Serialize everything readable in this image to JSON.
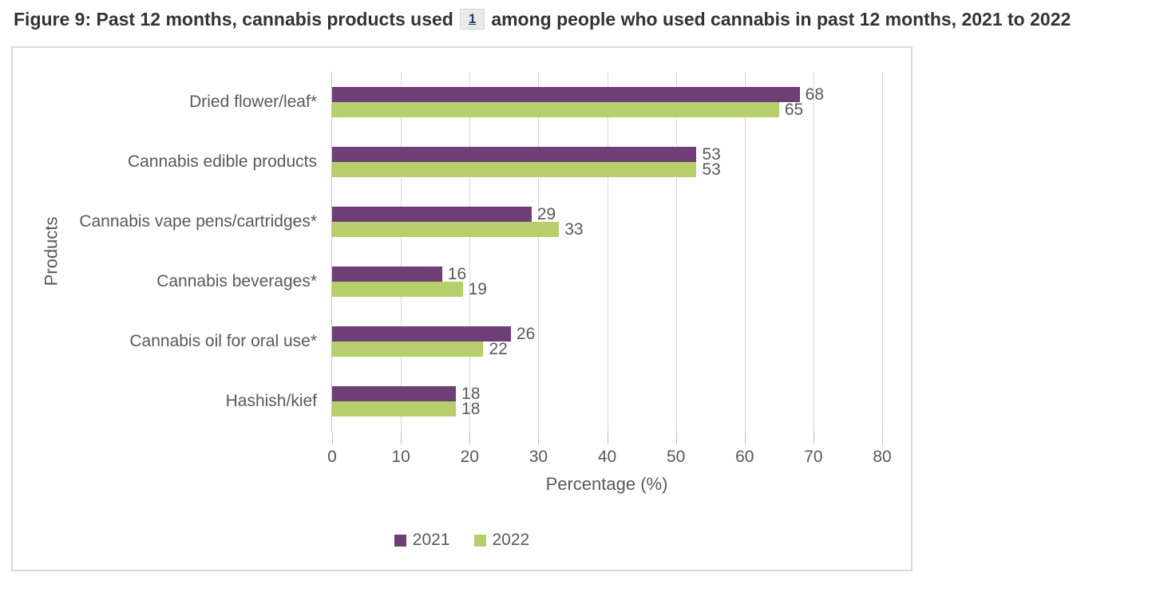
{
  "title": {
    "part1": "Figure 9: Past 12 months, cannabis products used",
    "footnote": "1",
    "part2": "among people who used cannabis in past 12 months, 2021 to 2022"
  },
  "colors": {
    "series_2021": "#6e3e76",
    "series_2022": "#b6cf6b",
    "gridline": "#d9d9d9",
    "axis_text": "#595959",
    "title_text": "#333333",
    "footnote_link": "#284162"
  },
  "chart_data": {
    "type": "bar",
    "orientation": "horizontal",
    "title": "Figure 9: Past 12 months, cannabis products used among people who used cannabis in past 12 months, 2021 to 2022",
    "categories": [
      "Dried flower/leaf*",
      "Cannabis edible products",
      "Cannabis vape pens/cartridges*",
      "Cannabis beverages*",
      "Cannabis oil for oral use*",
      "Hashish/kief"
    ],
    "series": [
      {
        "name": "2021",
        "color": "#6e3e76",
        "values": [
          68,
          53,
          29,
          16,
          26,
          18
        ]
      },
      {
        "name": "2022",
        "color": "#b6cf6b",
        "values": [
          65,
          53,
          33,
          19,
          22,
          18
        ]
      }
    ],
    "xlabel": "Percentage (%)",
    "ylabel": "Products",
    "xlim": [
      0,
      80
    ],
    "xticks": [
      0,
      10,
      20,
      30,
      40,
      50,
      60,
      70,
      80
    ],
    "grid": true,
    "data_labels": true,
    "legend_position": "bottom"
  }
}
